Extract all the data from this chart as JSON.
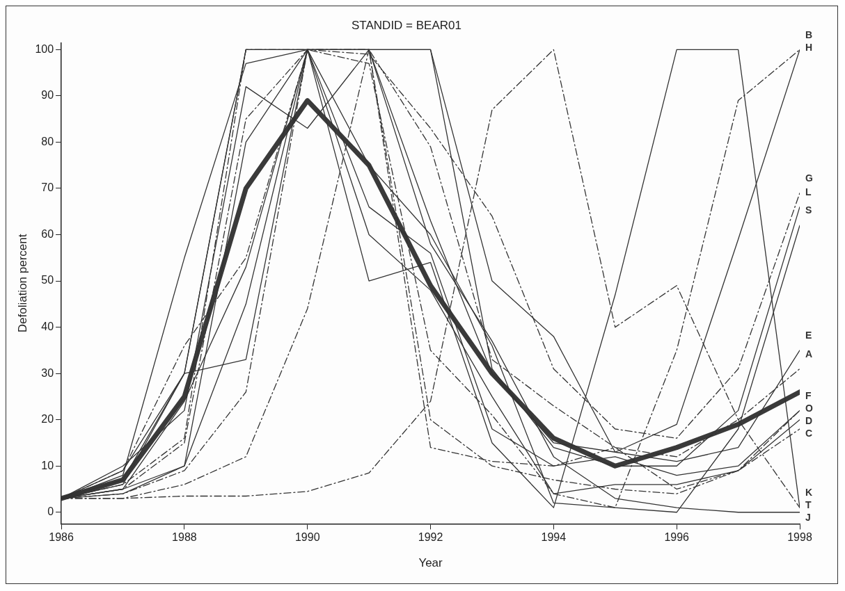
{
  "chart_data": {
    "type": "line",
    "title": "STANDID = BEAR01",
    "xlabel": "Year",
    "ylabel": "Defoliation percent",
    "x": [
      1986,
      1987,
      1988,
      1989,
      1990,
      1991,
      1992,
      1993,
      1994,
      1995,
      1996,
      1997,
      1998
    ],
    "xlim": [
      1986,
      1998
    ],
    "xticks": [
      1986,
      1988,
      1990,
      1992,
      1994,
      1996,
      1998
    ],
    "ylim": [
      -2.5,
      101.5
    ],
    "yticks": [
      0,
      10,
      20,
      30,
      40,
      50,
      60,
      70,
      80,
      90,
      100
    ],
    "grid": false,
    "legend": false,
    "marker": "none",
    "series": [
      {
        "name": "A",
        "color": "#333333",
        "line_style": "dashed",
        "values": [
          3,
          3,
          3.5,
          3.5,
          4.5,
          8.5,
          24,
          87,
          100,
          40,
          49,
          20,
          31
        ]
      },
      {
        "name": "B",
        "color": "#333333",
        "line_style": "dashed",
        "values": [
          3,
          6,
          16,
          100,
          100,
          97,
          35,
          21,
          4,
          1,
          35,
          89,
          100
        ]
      },
      {
        "name": "C",
        "color": "#333333",
        "line_style": "dashed",
        "values": [
          3,
          5,
          15,
          85,
          100,
          100,
          79,
          33,
          23,
          14,
          5,
          9,
          18
        ]
      },
      {
        "name": "D",
        "color": "#333333",
        "line_style": "solid",
        "values": [
          3,
          5,
          10,
          80,
          100,
          60,
          48,
          25,
          4,
          6,
          6,
          9,
          20
        ]
      },
      {
        "name": "E",
        "color": "#333333",
        "line_style": "solid",
        "values": [
          3,
          6,
          30,
          33,
          100,
          100,
          100,
          50,
          38,
          13,
          11,
          14,
          35
        ]
      },
      {
        "name": "F",
        "color": "#333333",
        "line_style": "solid",
        "values": [
          3,
          8,
          55,
          97,
          100,
          66,
          56,
          18,
          10,
          12,
          8,
          10,
          22
        ]
      },
      {
        "name": "G",
        "color": "#333333",
        "line_style": "dashed",
        "values": [
          3,
          9,
          36,
          55,
          100,
          99,
          83,
          64,
          31,
          18,
          16,
          31,
          69
        ]
      },
      {
        "name": "H",
        "color": "#333333",
        "line_style": "solid",
        "values": [
          3,
          10,
          22,
          92,
          83,
          100,
          63,
          30,
          15,
          13,
          19,
          59,
          100
        ]
      },
      {
        "name": "J",
        "color": "#333333",
        "line_style": "solid",
        "values": [
          3,
          4,
          10,
          45,
          100,
          100,
          58,
          37,
          12,
          3,
          1,
          0,
          0
        ]
      },
      {
        "name": "K",
        "color": "#333333",
        "line_style": "dashed",
        "values": [
          3,
          3,
          6,
          12,
          44,
          100,
          14,
          11,
          10,
          14,
          12,
          20,
          1
        ]
      },
      {
        "name": "L",
        "color": "#333333",
        "line_style": "solid",
        "values": [
          3,
          9,
          30,
          100,
          100,
          100,
          100,
          31,
          14,
          10,
          10,
          22,
          66
        ]
      },
      {
        "name": "O",
        "color": "#333333",
        "line_style": "dashed",
        "values": [
          3,
          4,
          9,
          26,
          100,
          100,
          20,
          10,
          7,
          5,
          4,
          9,
          22
        ]
      },
      {
        "name": "S",
        "color": "#333333",
        "line_style": "solid",
        "values": [
          3,
          5,
          24,
          53,
          100,
          75,
          60,
          36,
          2,
          1,
          0,
          18,
          62
        ]
      },
      {
        "name": "T",
        "color": "#333333",
        "line_style": "solid",
        "values": [
          3,
          7,
          30,
          100,
          100,
          50,
          54,
          15,
          1,
          47,
          100,
          100,
          1
        ]
      },
      {
        "color": "#3a3a3a",
        "line_style": "solid",
        "values": [
          3,
          7,
          25,
          70,
          89,
          75,
          49,
          30,
          16,
          10,
          14,
          19,
          26
        ]
      }
    ]
  }
}
